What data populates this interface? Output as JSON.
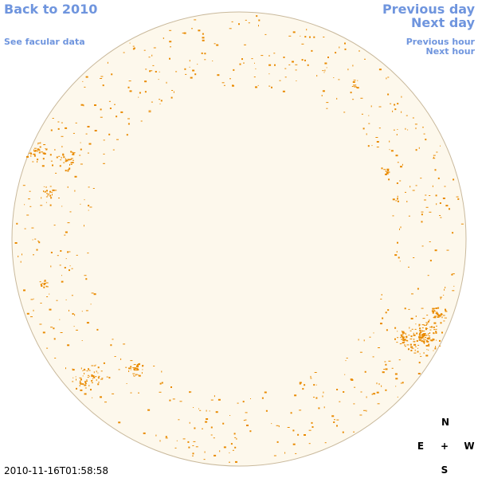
{
  "nav": {
    "back": "Back to 2010",
    "facular": "See facular data",
    "previous_day": "Previous day",
    "next_day": "Next day",
    "previous_hour": "Previous hour",
    "next_hour": "Next hour"
  },
  "timestamp": "2010-11-16T01:58:58",
  "compass": {
    "north": "N",
    "east": "E",
    "center": "+",
    "west": "W",
    "south": "S"
  }
}
